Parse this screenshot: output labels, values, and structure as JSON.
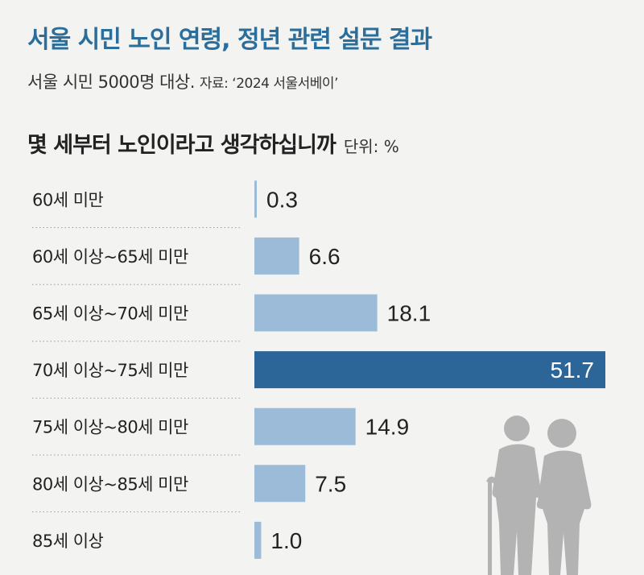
{
  "header": {
    "title": "서울 시민 노인 연령, 정년 관련 설문 결과",
    "subtitle": "서울 시민 5000명 대상.",
    "source": "자료: ‘2024 서울서베이’",
    "question": "몇 세부터 노인이라고 생각하십니까",
    "unit": "단위: %"
  },
  "colors": {
    "bar": "#9bbbd8",
    "highlight": "#2c6699",
    "title": "#2c6e9b",
    "figure": "#b3b3b3"
  },
  "chart_data": {
    "type": "bar",
    "orientation": "horizontal",
    "categories": [
      "60세 미만",
      "60세 이상~65세 미만",
      "65세 이상~70세 미만",
      "70세 이상~75세 미만",
      "75세 이상~80세 미만",
      "80세 이상~85세 미만",
      "85세 이상"
    ],
    "values": [
      0.3,
      6.6,
      18.1,
      51.7,
      14.9,
      7.5,
      1.0
    ],
    "value_labels": [
      "0.3",
      "6.6",
      "18.1",
      "51.7",
      "14.9",
      "7.5",
      "1.0"
    ],
    "highlight_index": 3,
    "xlim": [
      0,
      51.7
    ],
    "grid": false,
    "unit": "%"
  }
}
